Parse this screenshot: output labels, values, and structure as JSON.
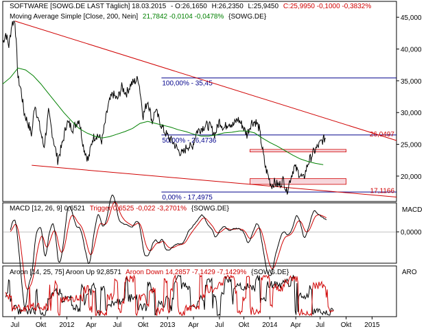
{
  "chart_data": {
    "type": "line",
    "main": {
      "header": {
        "symbol": "SOFTWARE [SOWG.DE LAST Täglich] 18.03.2015",
        "open": "- O:26,1650",
        "high": "H:26,2350",
        "low": "L:25,9450",
        "close": "C:25,9950 -0,1000 -0,3832%"
      },
      "ma_legend": {
        "name": "Moving Average Simple [Close, 200, Nein]",
        "values": "21,7842 -0,0104 -0,0478%",
        "symbol": "{SOWG.DE}"
      },
      "ylim": [
        16000,
        47500
      ],
      "y_ticks": [
        {
          "v": 20000,
          "label": "20,000"
        },
        {
          "v": 25000,
          "label": "25,000"
        },
        {
          "v": 30000,
          "label": "30,000"
        },
        {
          "v": 35000,
          "label": "35,000"
        },
        {
          "v": 40000,
          "label": "40,000"
        },
        {
          "v": 45000,
          "label": "45,000"
        }
      ],
      "price": [
        [
          0,
          41000
        ],
        [
          0.02,
          42500
        ],
        [
          0.04,
          40500
        ],
        [
          0.06,
          44000
        ],
        [
          0.08,
          44500
        ],
        [
          0.1,
          35500
        ],
        [
          0.12,
          33500
        ],
        [
          0.14,
          30000
        ],
        [
          0.17,
          28000
        ],
        [
          0.19,
          26500
        ],
        [
          0.21,
          31500
        ],
        [
          0.24,
          28000
        ],
        [
          0.27,
          24500
        ],
        [
          0.3,
          30000
        ],
        [
          0.33,
          26000
        ],
        [
          0.36,
          22500
        ],
        [
          0.39,
          25000
        ],
        [
          0.42,
          28500
        ],
        [
          0.46,
          27500
        ],
        [
          0.5,
          29000
        ],
        [
          0.53,
          24500
        ],
        [
          0.56,
          22500
        ],
        [
          0.59,
          26000
        ],
        [
          0.62,
          26500
        ],
        [
          0.65,
          25500
        ],
        [
          0.69,
          31000
        ],
        [
          0.72,
          33000
        ],
        [
          0.75,
          32000
        ],
        [
          0.78,
          34000
        ],
        [
          0.81,
          33000
        ],
        [
          0.84,
          34500
        ],
        [
          0.87,
          35000
        ],
        [
          0.89,
          35300
        ],
        [
          0.92,
          29500
        ],
        [
          0.95,
          32000
        ],
        [
          0.98,
          28500
        ],
        [
          1.0,
          30500
        ],
        [
          1.03,
          28500
        ],
        [
          1.06,
          27000
        ],
        [
          1.09,
          26000
        ],
        [
          1.12,
          25200
        ],
        [
          1.15,
          24000
        ],
        [
          1.18,
          23500
        ],
        [
          1.21,
          24800
        ],
        [
          1.24,
          24500
        ],
        [
          1.27,
          27000
        ],
        [
          1.3,
          27500
        ],
        [
          1.33,
          28000
        ],
        [
          1.36,
          27800
        ],
        [
          1.39,
          26500
        ],
        [
          1.42,
          28700
        ],
        [
          1.45,
          27500
        ],
        [
          1.48,
          28500
        ],
        [
          1.51,
          28000
        ],
        [
          1.54,
          29000
        ],
        [
          1.57,
          28000
        ],
        [
          1.6,
          26500
        ],
        [
          1.63,
          28500
        ],
        [
          1.66,
          28500
        ],
        [
          1.68,
          27500
        ],
        [
          1.7,
          24500
        ],
        [
          1.72,
          21500
        ],
        [
          1.74,
          20000
        ],
        [
          1.76,
          18500
        ],
        [
          1.78,
          19000
        ],
        [
          1.81,
          18500
        ],
        [
          1.84,
          19500
        ],
        [
          1.86,
          17500
        ],
        [
          1.89,
          20000
        ],
        [
          1.91,
          21500
        ],
        [
          1.94,
          20500
        ],
        [
          1.97,
          19500
        ],
        [
          2.0,
          22000
        ],
        [
          2.03,
          23500
        ],
        [
          2.06,
          24500
        ],
        [
          2.09,
          25500
        ],
        [
          2.12,
          26150
        ]
      ],
      "ma200": [
        [
          0,
          34500
        ],
        [
          0.05,
          35500
        ],
        [
          0.1,
          37000
        ],
        [
          0.15,
          36700
        ],
        [
          0.2,
          35800
        ],
        [
          0.25,
          34500
        ],
        [
          0.3,
          33000
        ],
        [
          0.35,
          31500
        ],
        [
          0.4,
          30000
        ],
        [
          0.45,
          28700
        ],
        [
          0.5,
          27500
        ],
        [
          0.55,
          26800
        ],
        [
          0.6,
          26300
        ],
        [
          0.65,
          26000
        ],
        [
          0.7,
          26200
        ],
        [
          0.75,
          26600
        ],
        [
          0.8,
          27000
        ],
        [
          0.85,
          27500
        ],
        [
          0.9,
          28300
        ],
        [
          0.95,
          28600
        ],
        [
          1.0,
          28300
        ],
        [
          1.05,
          28000
        ],
        [
          1.1,
          27700
        ],
        [
          1.15,
          27300
        ],
        [
          1.2,
          27000
        ],
        [
          1.25,
          26600
        ],
        [
          1.3,
          26300
        ],
        [
          1.35,
          26300
        ],
        [
          1.4,
          26500
        ],
        [
          1.45,
          26800
        ],
        [
          1.5,
          26900
        ],
        [
          1.55,
          27100
        ],
        [
          1.6,
          27100
        ],
        [
          1.65,
          26800
        ],
        [
          1.7,
          26000
        ],
        [
          1.75,
          25300
        ],
        [
          1.8,
          24700
        ],
        [
          1.85,
          24000
        ],
        [
          1.9,
          23300
        ],
        [
          1.95,
          22700
        ],
        [
          2.0,
          22300
        ],
        [
          2.05,
          22000
        ],
        [
          2.1,
          21800
        ]
      ],
      "fib_levels": [
        {
          "v": 35450,
          "label": "100,00% - 35,45"
        },
        {
          "v": 26474,
          "label": "50,00% - 26,4736"
        },
        {
          "v": 17498,
          "label": "0,00% - 17,4975"
        }
      ],
      "right_labels": [
        {
          "v": 26050,
          "label": "26,0497"
        },
        {
          "v": 17117,
          "label": "17,1166"
        }
      ],
      "bands": [
        {
          "v1": 24200,
          "v2": 23800
        },
        {
          "v1": 19600,
          "v2": 18700
        }
      ],
      "x_ticks": [
        {
          "x": 0.08,
          "label": "Jul"
        },
        {
          "x": 0.25,
          "label": "Okt"
        },
        {
          "x": 0.42,
          "label": "2012"
        },
        {
          "x": 0.58,
          "label": "Apr"
        },
        {
          "x": 0.75,
          "label": "Jul"
        },
        {
          "x": 0.92,
          "label": "Okt"
        },
        {
          "x": 1.08,
          "label": "2013"
        },
        {
          "x": 1.25,
          "label": "Apr"
        },
        {
          "x": 1.42,
          "label": "Jul"
        },
        {
          "x": 1.58,
          "label": "Okt"
        },
        {
          "x": 1.75,
          "label": "2014"
        },
        {
          "x": 1.92,
          "label": "Apr"
        },
        {
          "x": 2.08,
          "label": "Jul"
        },
        {
          "x": 2.25,
          "label": "Okt"
        },
        {
          "x": 2.42,
          "label": "2015"
        }
      ],
      "xlim": [
        0,
        2.58
      ]
    },
    "macd": {
      "legend_name": "MACD [12, 26, 9] 0,6521",
      "legend_trigger": "Trigger 0,6525 -0,022 -3,2701%",
      "legend_symbol": "{SOWG.DE}",
      "label": "MACD",
      "zero_label": "0,0000",
      "ylim": [
        -4,
        3
      ]
    },
    "aroon": {
      "legend_name": "Aroon [14, 25, 75] Aroon Up 92,8571",
      "legend_down": "Aroon Down 14,2857 -7,1429 -7,1429%",
      "legend_symbol": "{SOWG.DE}",
      "label": "ARO"
    },
    "colors": {
      "price": "#000000",
      "ma": "#008000",
      "trend": "#d00000",
      "fib": "#00008b",
      "macd": "#000000",
      "trigger": "#d00000",
      "aroon_up": "#000000",
      "aroon_down": "#d00000"
    }
  }
}
